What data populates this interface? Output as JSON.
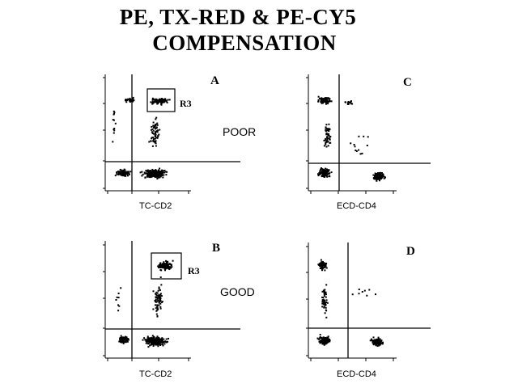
{
  "title": {
    "line1": "PE, TX-RED & PE-CY5",
    "line2": "COMPENSATION"
  },
  "panels": [
    {
      "letter": "A",
      "x_label": "TC-CD2",
      "gate": "R3"
    },
    {
      "letter": "C",
      "x_label": "ECD-CD4",
      "gate": ""
    },
    {
      "letter": "B",
      "x_label": "TC-CD2",
      "gate": "R3"
    },
    {
      "letter": "D",
      "x_label": "ECD-CD4",
      "gate": ""
    }
  ],
  "quality": {
    "top": "POOR",
    "bottom": "GOOD"
  },
  "colors": {
    "ink": "#000000",
    "background": "#ffffff"
  }
}
